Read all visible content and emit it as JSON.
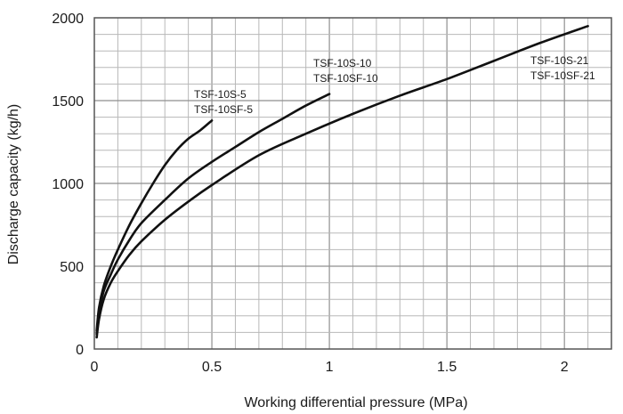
{
  "chart_data": {
    "type": "line",
    "title": "",
    "xlabel": "Working differential pressure (MPa)",
    "ylabel": "Discharge capacity (kg/h)",
    "xlim": [
      0,
      2.2
    ],
    "ylim": [
      0,
      2000
    ],
    "grid": true,
    "x_ticks": [
      "0",
      "0.5",
      "1",
      "1.5",
      "2"
    ],
    "y_ticks": [
      "0",
      "500",
      "1000",
      "1500",
      "2000"
    ],
    "series": [
      {
        "name": "TSF-10S-5 / TSF-10SF-5",
        "labels": [
          "TSF-10S-5",
          "TSF-10SF-5"
        ],
        "x": [
          0.01,
          0.02,
          0.04,
          0.07,
          0.1,
          0.15,
          0.2,
          0.25,
          0.3,
          0.35,
          0.4,
          0.45,
          0.5
        ],
        "y": [
          110,
          250,
          380,
          500,
          600,
          750,
          880,
          1000,
          1110,
          1200,
          1270,
          1320,
          1380
        ]
      },
      {
        "name": "TSF-10S-10 / TSF-10SF-10",
        "labels": [
          "TSF-10S-10",
          "TSF-10SF-10"
        ],
        "x": [
          0.01,
          0.02,
          0.04,
          0.07,
          0.1,
          0.15,
          0.2,
          0.3,
          0.4,
          0.5,
          0.6,
          0.7,
          0.8,
          0.9,
          1.0
        ],
        "y": [
          90,
          220,
          350,
          450,
          540,
          660,
          760,
          900,
          1030,
          1130,
          1220,
          1310,
          1390,
          1470,
          1540
        ]
      },
      {
        "name": "TSF-10S-21 / TSF-10SF-21",
        "labels": [
          "TSF-10S-21",
          "TSF-10SF-21"
        ],
        "x": [
          0.01,
          0.02,
          0.04,
          0.07,
          0.1,
          0.15,
          0.2,
          0.3,
          0.4,
          0.5,
          0.7,
          0.9,
          1.1,
          1.3,
          1.5,
          1.7,
          1.9,
          2.1
        ],
        "y": [
          70,
          180,
          300,
          400,
          470,
          570,
          650,
          780,
          890,
          990,
          1170,
          1300,
          1420,
          1530,
          1630,
          1740,
          1850,
          1950
        ]
      }
    ]
  }
}
